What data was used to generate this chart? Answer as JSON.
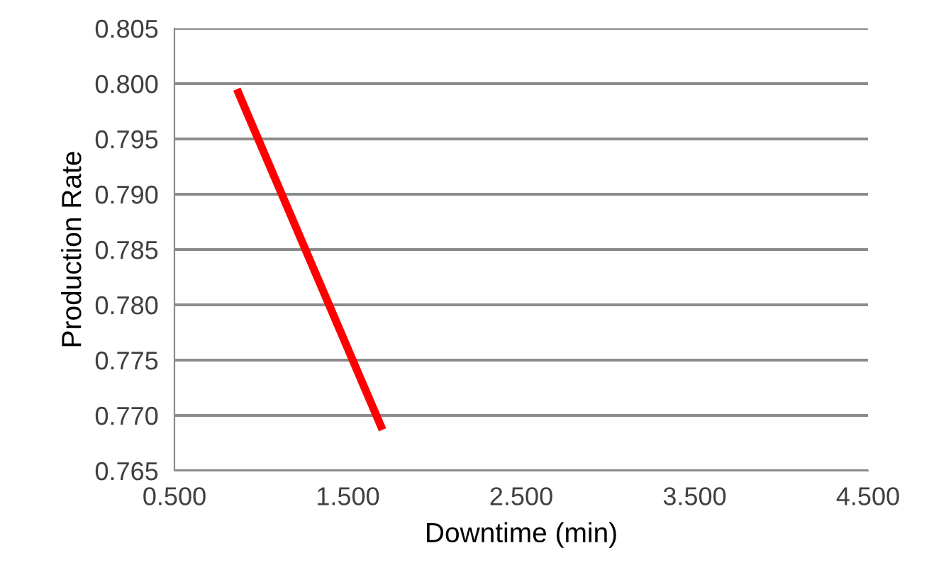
{
  "chart_data": {
    "type": "line",
    "xlabel": "Downtime (min)",
    "ylabel": "Production Rate",
    "series": [
      {
        "color": "#ff0000",
        "x": [
          0.86,
          1.7
        ],
        "values": [
          0.7995,
          0.7687
        ]
      }
    ],
    "xlim": [
      0.5,
      4.5
    ],
    "xticks": [
      {
        "value": 0.5,
        "label": "0.500"
      },
      {
        "value": 1.5,
        "label": "1.500"
      },
      {
        "value": 2.5,
        "label": "2.500"
      },
      {
        "value": 3.5,
        "label": "3.500"
      },
      {
        "value": 4.5,
        "label": "4.500"
      }
    ],
    "ylim": [
      0.765,
      0.805
    ],
    "yticks": [
      {
        "value": 0.765,
        "label": "0.765"
      },
      {
        "value": 0.77,
        "label": "0.770"
      },
      {
        "value": 0.775,
        "label": "0.775"
      },
      {
        "value": 0.78,
        "label": "0.780"
      },
      {
        "value": 0.785,
        "label": "0.785"
      },
      {
        "value": 0.79,
        "label": "0.790"
      },
      {
        "value": 0.795,
        "label": "0.795"
      },
      {
        "value": 0.8,
        "label": "0.800"
      },
      {
        "value": 0.805,
        "label": "0.805"
      }
    ],
    "grid": "y",
    "marker": "none",
    "line_style": "solid",
    "legend": false
  }
}
